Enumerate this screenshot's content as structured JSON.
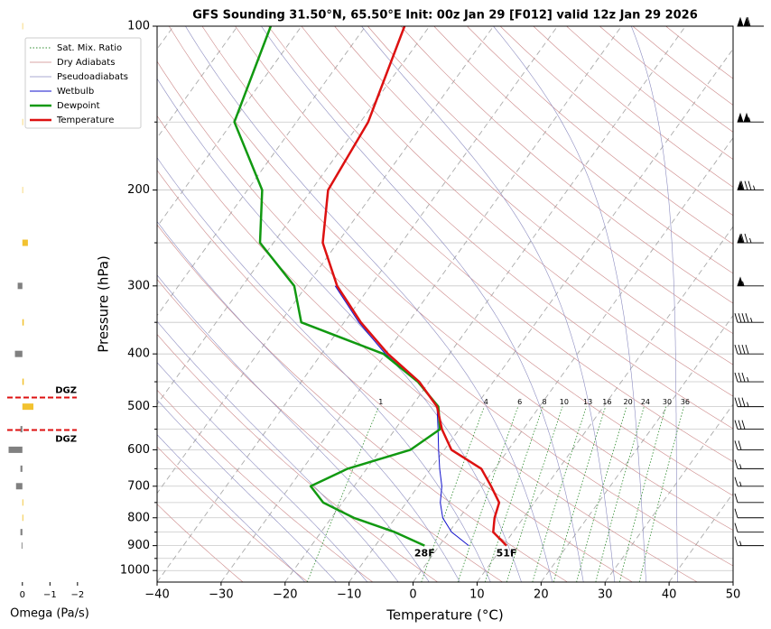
{
  "chart_data": [
    {
      "type": "skewt",
      "title": "GFS Sounding 31.50°N, 65.50°E Init: 00z Jan 29 [F012] valid 12z Jan 29 2026",
      "x_label": "Temperature (°C)",
      "y_label": "Pressure (hPa)",
      "xlim": [
        -40,
        50
      ],
      "xticks": [
        {
          "value": -40,
          "label": "−40"
        },
        {
          "value": -30,
          "label": "−30"
        },
        {
          "value": -20,
          "label": "−20"
        },
        {
          "value": -10,
          "label": "−10"
        },
        0,
        10,
        20,
        30,
        40,
        50
      ],
      "ylim": [
        1050,
        100
      ],
      "log_y": true,
      "yticks": [
        100,
        200,
        300,
        400,
        500,
        600,
        700,
        800,
        900,
        1000
      ],
      "yminor_ticks": [
        150,
        250,
        350,
        450,
        550,
        650,
        750,
        850,
        950
      ],
      "grid": true,
      "legend": "upper left",
      "pressure": [
        900,
        850,
        800,
        750,
        700,
        650,
        600,
        550,
        500,
        450,
        400,
        350,
        300,
        250,
        200,
        150,
        100
      ],
      "reference_lines": [
        {
          "name": "Sat. Mix. Ratio",
          "color": "#2e8b2e"
        },
        {
          "name": "Dry Adiabats",
          "color": "#cc8888"
        },
        {
          "name": "Pseudoadiabats",
          "color": "#8c8cc0"
        }
      ],
      "series": [
        {
          "name": "Wetbulb",
          "color": "#1010cc",
          "line_width": 1,
          "values": [
            4.6,
            0.4,
            -2.6,
            -4.7,
            -6.3,
            -8.6,
            -10.9,
            -13.3,
            -16.0,
            -21.8,
            -30.0,
            -37.7,
            -45.5,
            null,
            null,
            null,
            null
          ]
        },
        {
          "name": "Dewpoint",
          "color": "#119911",
          "line_width": 2.5,
          "values": [
            -2.3,
            -8.5,
            -16.5,
            -23.0,
            -26.8,
            -23.0,
            -15.3,
            -13.0,
            -15.8,
            -21.8,
            -30.3,
            -46.7,
            -51.9,
            -62.1,
            -67.7,
            -79.7,
            -84.8
          ]
        },
        {
          "name": "Temperature",
          "color": "#dd1111",
          "line_width": 2.5,
          "values": [
            10.5,
            6.9,
            5.5,
            4.5,
            1.4,
            -2.1,
            -8.9,
            -12.7,
            -16.0,
            -21.6,
            -29.6,
            -37.4,
            -45.2,
            -52.3,
            -57.4,
            -58.8,
            -63.9
          ]
        }
      ],
      "mixing_ratio_labels": [
        1,
        4,
        6,
        8,
        10,
        13,
        16,
        20,
        24,
        30,
        36
      ],
      "surface_labels": [
        "28F",
        "51F"
      ],
      "wind_speed": [
        15,
        10,
        10,
        10,
        15,
        15,
        20,
        30,
        35,
        35,
        40,
        45,
        55,
        75,
        85,
        105,
        110
      ]
    },
    {
      "type": "omega",
      "x_label": "Omega (Pa/s)",
      "xlim": [
        0.55,
        -2.3
      ],
      "xticks": [
        0,
        {
          "value": -1,
          "label": "−1"
        },
        {
          "value": -2,
          "label": "−2"
        }
      ],
      "ylim": [
        1050,
        100
      ],
      "log_y": true,
      "pressure": [
        900,
        850,
        800,
        750,
        700,
        650,
        600,
        550,
        500,
        450,
        400,
        350,
        300,
        250,
        200,
        150,
        100
      ],
      "values": [
        0.03,
        0.07,
        -0.03,
        -0.03,
        0.23,
        0.07,
        0.5,
        0.07,
        -0.4,
        -0.05,
        0.27,
        -0.05,
        0.17,
        -0.2,
        -0.02,
        -0.02,
        -0.02
      ],
      "colors": {
        "negative": "#f2c230",
        "positive": "#808080"
      },
      "dgz": {
        "label": "DGZ",
        "color": "#dd1111",
        "pressures": [
          481,
          552
        ]
      }
    }
  ]
}
